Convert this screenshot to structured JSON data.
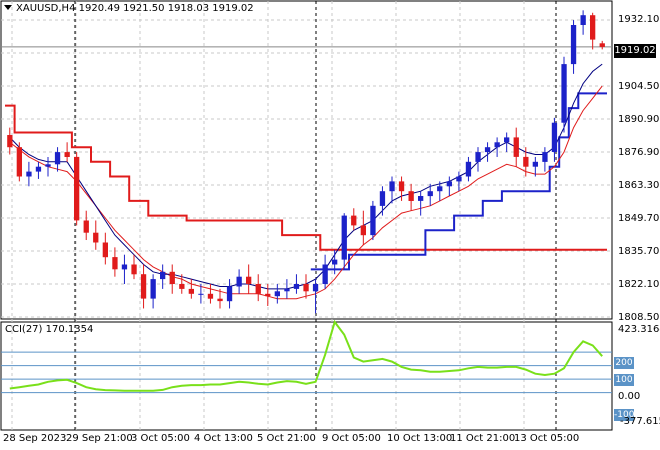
{
  "header": {
    "symbol": "XAUUSD,H4",
    "ohlc": "1920.49 1921.50 1918.03 1919.02"
  },
  "current_price": "1919.02",
  "price_axis": [
    "1932.10",
    "1904.50",
    "1890.90",
    "1876.90",
    "1863.30",
    "1849.70",
    "1835.70",
    "1822.10",
    "1808.50"
  ],
  "cci": {
    "label": "CCI(27) 170.1354",
    "axis": [
      "423.3164",
      "0.00",
      "-377.615"
    ],
    "levels": [
      "200",
      "100",
      "-100"
    ]
  },
  "time_axis": [
    "28 Sep 2023",
    "29 Sep 21:00",
    "3 Oct 05:00",
    "4 Oct 13:00",
    "5 Oct 21:00",
    "9 Oct 05:00",
    "10 Oct 13:00",
    "11 Oct 21:00",
    "13 Oct 05:00"
  ],
  "colors": {
    "bull": "#1c22c9",
    "bear": "#e01b1b",
    "upper_band": "#e01b1b",
    "lower_band": "#1c22c9",
    "ma_fast": "#000080",
    "ma_slow": "#e01b1b",
    "cci": "#79e01a",
    "grid": "#c8c8c8"
  },
  "chart_data": {
    "type": "candlestick",
    "ylim": [
      1808.5,
      1937
    ],
    "candles": [
      [
        1883,
        1886,
        1875,
        1878
      ],
      [
        1878,
        1880,
        1864,
        1866
      ],
      [
        1866,
        1872,
        1862,
        1868
      ],
      [
        1868,
        1872,
        1865,
        1870
      ],
      [
        1870,
        1874,
        1866,
        1871
      ],
      [
        1871,
        1878,
        1868,
        1876
      ],
      [
        1876,
        1880,
        1872,
        1874
      ],
      [
        1874,
        1876,
        1846,
        1848
      ],
      [
        1848,
        1852,
        1840,
        1843
      ],
      [
        1843,
        1848,
        1836,
        1839
      ],
      [
        1839,
        1843,
        1830,
        1833
      ],
      [
        1833,
        1837,
        1825,
        1828
      ],
      [
        1828,
        1834,
        1822,
        1830
      ],
      [
        1830,
        1834,
        1824,
        1826
      ],
      [
        1826,
        1830,
        1812,
        1816
      ],
      [
        1816,
        1826,
        1812,
        1824
      ],
      [
        1824,
        1830,
        1820,
        1827
      ],
      [
        1827,
        1830,
        1818,
        1822
      ],
      [
        1822,
        1826,
        1818,
        1820
      ],
      [
        1820,
        1824,
        1816,
        1818
      ],
      [
        1818,
        1822,
        1814,
        1818
      ],
      [
        1818,
        1822,
        1814,
        1816
      ],
      [
        1816,
        1820,
        1812,
        1815
      ],
      [
        1815,
        1824,
        1812,
        1821
      ],
      [
        1821,
        1828,
        1818,
        1825
      ],
      [
        1825,
        1830,
        1818,
        1822
      ],
      [
        1822,
        1826,
        1815,
        1818
      ],
      [
        1818,
        1822,
        1813,
        1817
      ],
      [
        1817,
        1822,
        1814,
        1819
      ],
      [
        1819,
        1824,
        1816,
        1820
      ],
      [
        1820,
        1826,
        1818,
        1822
      ],
      [
        1822,
        1826,
        1816,
        1819
      ],
      [
        1819,
        1824,
        1810,
        1822
      ],
      [
        1822,
        1834,
        1820,
        1830
      ],
      [
        1830,
        1836,
        1826,
        1832
      ],
      [
        1832,
        1851,
        1828,
        1850
      ],
      [
        1850,
        1853,
        1844,
        1846
      ],
      [
        1846,
        1852,
        1838,
        1842
      ],
      [
        1842,
        1856,
        1840,
        1854
      ],
      [
        1854,
        1862,
        1850,
        1860
      ],
      [
        1860,
        1866,
        1855,
        1864
      ],
      [
        1864,
        1866,
        1856,
        1860
      ],
      [
        1860,
        1863,
        1852,
        1856
      ],
      [
        1856,
        1860,
        1850,
        1858
      ],
      [
        1858,
        1863,
        1854,
        1860
      ],
      [
        1860,
        1864,
        1856,
        1862
      ],
      [
        1862,
        1866,
        1858,
        1864
      ],
      [
        1864,
        1868,
        1860,
        1866
      ],
      [
        1866,
        1874,
        1864,
        1872
      ],
      [
        1872,
        1878,
        1868,
        1876
      ],
      [
        1876,
        1880,
        1872,
        1878
      ],
      [
        1878,
        1882,
        1874,
        1880
      ],
      [
        1880,
        1884,
        1876,
        1882
      ],
      [
        1882,
        1886,
        1870,
        1874
      ],
      [
        1874,
        1878,
        1866,
        1870
      ],
      [
        1870,
        1874,
        1866,
        1872
      ],
      [
        1872,
        1878,
        1868,
        1876
      ],
      [
        1876,
        1890,
        1872,
        1888
      ],
      [
        1888,
        1915,
        1884,
        1912
      ],
      [
        1912,
        1930,
        1908,
        1928
      ],
      [
        1928,
        1934,
        1924,
        1932
      ],
      [
        1932,
        1933,
        1918,
        1922
      ],
      [
        1920.49,
        1921.5,
        1918.03,
        1919.02
      ]
    ],
    "upper_band": [
      1895,
      1884,
      1884,
      1884,
      1884,
      1884,
      1884,
      1878,
      1878,
      1872,
      1872,
      1866,
      1866,
      1856,
      1856,
      1850,
      1850,
      1850,
      1850,
      1848,
      1848,
      1848,
      1848,
      1848,
      1848,
      1848,
      1848,
      1848,
      1848,
      1842,
      1842,
      1842,
      1842,
      1836,
      1836,
      1836,
      1836,
      1836,
      1836,
      1836,
      1836,
      1836,
      1836,
      1836,
      1836,
      1836,
      1836,
      1836,
      1836,
      1836,
      1836,
      1836,
      1836,
      1836,
      1836,
      1836,
      1836,
      1836,
      1836,
      1836,
      1836,
      1836,
      1836
    ],
    "lower_band": [
      null,
      null,
      null,
      null,
      null,
      null,
      null,
      null,
      null,
      null,
      null,
      null,
      null,
      null,
      null,
      null,
      null,
      null,
      null,
      null,
      null,
      null,
      null,
      null,
      null,
      null,
      null,
      null,
      null,
      null,
      null,
      null,
      1828,
      1828,
      1828,
      1828,
      1834,
      1834,
      1834,
      1834,
      1834,
      1834,
      1834,
      1834,
      1844,
      1844,
      1844,
      1850,
      1850,
      1850,
      1856,
      1856,
      1860,
      1860,
      1860,
      1860,
      1860,
      1870,
      1882,
      1894,
      1900,
      1900,
      1900
    ],
    "ma_fast": [
      1882,
      1878,
      1875,
      1873,
      1872,
      1872,
      1872,
      1866,
      1860,
      1854,
      1848,
      1842,
      1838,
      1834,
      1830,
      1827,
      1826,
      1826,
      1825,
      1824,
      1823,
      1822,
      1821,
      1821,
      1822,
      1822,
      1821,
      1820,
      1820,
      1820,
      1821,
      1822,
      1824,
      1828,
      1834,
      1840,
      1844,
      1846,
      1848,
      1852,
      1856,
      1858,
      1859,
      1860,
      1862,
      1863,
      1864,
      1866,
      1868,
      1872,
      1875,
      1878,
      1880,
      1878,
      1876,
      1875,
      1875,
      1878,
      1886,
      1896,
      1904,
      1909,
      1912
    ],
    "ma_slow": [
      1880,
      1877,
      1874,
      1872,
      1870,
      1869,
      1868,
      1864,
      1859,
      1854,
      1849,
      1844,
      1840,
      1836,
      1832,
      1829,
      1827,
      1825,
      1824,
      1822,
      1821,
      1820,
      1819,
      1818,
      1818,
      1818,
      1818,
      1817,
      1816,
      1816,
      1816,
      1817,
      1818,
      1820,
      1824,
      1829,
      1834,
      1838,
      1841,
      1845,
      1848,
      1851,
      1852,
      1853,
      1854,
      1856,
      1858,
      1860,
      1862,
      1865,
      1867,
      1869,
      1871,
      1870,
      1868,
      1867,
      1867,
      1870,
      1876,
      1886,
      1893,
      1898,
      1903
    ],
    "cci": [
      -70,
      -60,
      -50,
      -40,
      -20,
      -10,
      -5,
      -30,
      -60,
      -75,
      -82,
      -84,
      -86,
      -87,
      -87,
      -86,
      -80,
      -60,
      -50,
      -45,
      -45,
      -40,
      -40,
      -30,
      -20,
      -25,
      -35,
      -40,
      -25,
      -15,
      -20,
      -35,
      -20,
      180,
      423,
      330,
      160,
      130,
      140,
      150,
      130,
      90,
      70,
      65,
      55,
      55,
      60,
      65,
      80,
      90,
      85,
      85,
      90,
      90,
      70,
      40,
      30,
      40,
      80,
      200,
      280,
      250,
      170
    ]
  }
}
